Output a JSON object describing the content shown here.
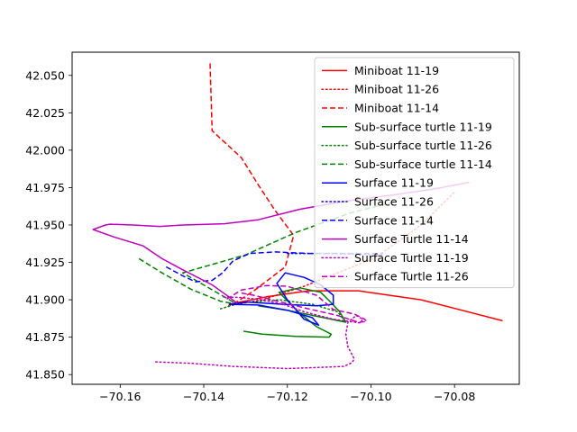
{
  "chart_data": {
    "type": "line",
    "title": "",
    "xlabel": "",
    "ylabel": "",
    "xlim": [
      -70.1715,
      -70.0645
    ],
    "ylim": [
      41.8435,
      42.0655
    ],
    "x_ticks": [
      -70.16,
      -70.14,
      -70.12,
      -70.1,
      -70.08
    ],
    "x_tick_labels": [
      "−70.16",
      "−70.14",
      "−70.12",
      "−70.10",
      "−70.08"
    ],
    "y_ticks": [
      41.85,
      41.875,
      41.9,
      41.925,
      41.95,
      41.975,
      42.0,
      42.025,
      42.05
    ],
    "y_tick_labels": [
      "41.850",
      "41.875",
      "41.900",
      "41.925",
      "41.950",
      "41.975",
      "42.000",
      "42.025",
      "42.050"
    ],
    "legend_position": "top-right",
    "series": [
      {
        "name": "Miniboat 11-19",
        "color": "#ff0000",
        "style": "solid",
        "points": [
          [
            -70.134,
            41.897
          ],
          [
            -70.125,
            41.902
          ],
          [
            -70.115,
            41.906
          ],
          [
            -70.103,
            41.906
          ],
          [
            -70.088,
            41.9
          ],
          [
            -70.0685,
            41.886
          ]
        ]
      },
      {
        "name": "Miniboat 11-26",
        "color": "#ff0000",
        "style": "dotted",
        "points": [
          [
            -70.134,
            41.896
          ],
          [
            -70.126,
            41.9
          ],
          [
            -70.116,
            41.909
          ],
          [
            -70.108,
            41.918
          ],
          [
            -70.099,
            41.928
          ],
          [
            -70.088,
            41.95
          ],
          [
            -70.08,
            41.972
          ]
        ]
      },
      {
        "name": "Miniboat 11-14",
        "color": "#ff0000",
        "style": "dashed",
        "points": [
          [
            -70.1385,
            42.058
          ],
          [
            -70.138,
            42.013
          ],
          [
            -70.131,
            41.995
          ],
          [
            -70.127,
            41.977
          ],
          [
            -70.123,
            41.96
          ],
          [
            -70.1185,
            41.943
          ],
          [
            -70.1205,
            41.922
          ],
          [
            -70.128,
            41.906
          ],
          [
            -70.133,
            41.897
          ]
        ]
      },
      {
        "name": "Sub-surface turtle 11-19",
        "color": "#008000",
        "style": "solid",
        "points": [
          [
            -70.1305,
            41.879
          ],
          [
            -70.126,
            41.877
          ],
          [
            -70.118,
            41.8755
          ],
          [
            -70.11,
            41.875
          ],
          [
            -70.1095,
            41.877
          ],
          [
            -70.113,
            41.882
          ],
          [
            -70.117,
            41.891
          ],
          [
            -70.122,
            41.905
          ],
          [
            -70.117,
            41.908
          ],
          [
            -70.112,
            41.905
          ],
          [
            -70.1095,
            41.898
          ],
          [
            -70.1075,
            41.892
          ],
          [
            -70.106,
            41.885
          ],
          [
            -70.113,
            41.889
          ],
          [
            -70.12,
            41.893
          ],
          [
            -70.127,
            41.896
          ]
        ]
      },
      {
        "name": "Sub-surface turtle 11-26",
        "color": "#008000",
        "style": "dotted",
        "points": [
          [
            -70.136,
            41.894
          ],
          [
            -70.131,
            41.898
          ],
          [
            -70.122,
            41.9
          ],
          [
            -70.114,
            41.897
          ],
          [
            -70.108,
            41.892
          ],
          [
            -70.106,
            41.885
          ]
        ]
      },
      {
        "name": "Sub-surface turtle 11-14",
        "color": "#008000",
        "style": "dashed",
        "points": [
          [
            -70.1555,
            41.9275
          ],
          [
            -70.15,
            41.918
          ],
          [
            -70.143,
            41.907
          ],
          [
            -70.136,
            41.899
          ],
          [
            -70.132,
            41.897
          ],
          [
            -70.145,
            41.918
          ],
          [
            -70.14,
            41.922
          ],
          [
            -70.13,
            41.93
          ],
          [
            -70.118,
            41.945
          ],
          [
            -70.105,
            41.958
          ],
          [
            -70.095,
            41.965
          ]
        ]
      },
      {
        "name": "Surface 11-19",
        "color": "#0000ff",
        "style": "solid",
        "points": [
          [
            -70.134,
            41.897
          ],
          [
            -70.127,
            41.8965
          ],
          [
            -70.12,
            41.893
          ],
          [
            -70.114,
            41.888
          ],
          [
            -70.1125,
            41.883
          ],
          [
            -70.116,
            41.887
          ],
          [
            -70.12,
            41.9
          ],
          [
            -70.1225,
            41.911
          ],
          [
            -70.1205,
            41.918
          ],
          [
            -70.116,
            41.915
          ],
          [
            -70.112,
            41.91
          ],
          [
            -70.109,
            41.903
          ],
          [
            -70.109,
            41.897
          ],
          [
            -70.113,
            41.896
          ],
          [
            -70.121,
            41.897
          ],
          [
            -70.1295,
            41.8985
          ],
          [
            -70.134,
            41.897
          ]
        ]
      },
      {
        "name": "Surface 11-26",
        "color": "#0000ff",
        "style": "dotted",
        "points": [
          [
            -70.12,
            41.931
          ],
          [
            -70.112,
            41.931
          ],
          [
            -70.104,
            41.9305
          ],
          [
            -70.097,
            41.93
          ]
        ]
      },
      {
        "name": "Surface 11-14",
        "color": "#0000ff",
        "style": "dashed",
        "points": [
          [
            -70.149,
            41.922
          ],
          [
            -70.145,
            41.916
          ],
          [
            -70.142,
            41.912
          ],
          [
            -70.138,
            41.913
          ],
          [
            -70.1355,
            41.918
          ],
          [
            -70.133,
            41.926
          ],
          [
            -70.129,
            41.931
          ],
          [
            -70.123,
            41.932
          ],
          [
            -70.115,
            41.931
          ],
          [
            -70.105,
            41.931
          ],
          [
            -70.097,
            41.931
          ]
        ]
      },
      {
        "name": "Surface Turtle 11-14",
        "color": "#bf00bf",
        "style": "solid",
        "points": [
          [
            -70.0765,
            41.9785
          ],
          [
            -70.085,
            41.974
          ],
          [
            -70.095,
            41.97
          ],
          [
            -70.106,
            41.966
          ],
          [
            -70.117,
            41.9605
          ],
          [
            -70.127,
            41.9535
          ],
          [
            -70.135,
            41.9508
          ],
          [
            -70.145,
            41.95
          ],
          [
            -70.1505,
            41.949
          ],
          [
            -70.157,
            41.95
          ],
          [
            -70.1625,
            41.9505
          ],
          [
            -70.1635,
            41.95
          ],
          [
            -70.1665,
            41.947
          ],
          [
            -70.1615,
            41.942
          ],
          [
            -70.1545,
            41.936
          ],
          [
            -70.15,
            41.9275
          ],
          [
            -70.145,
            41.92
          ],
          [
            -70.138,
            41.91
          ],
          [
            -70.1335,
            41.901
          ],
          [
            -70.132,
            41.8975
          ]
        ]
      },
      {
        "name": "Surface Turtle 11-19",
        "color": "#bf00bf",
        "style": "dotted",
        "points": [
          [
            -70.1515,
            41.8585
          ],
          [
            -70.143,
            41.8575
          ],
          [
            -70.133,
            41.8555
          ],
          [
            -70.12,
            41.854
          ],
          [
            -70.1105,
            41.855
          ],
          [
            -70.1065,
            41.8555
          ],
          [
            -70.1045,
            41.858
          ],
          [
            -70.104,
            41.8605
          ],
          [
            -70.1055,
            41.8685
          ],
          [
            -70.106,
            41.877
          ],
          [
            -70.1055,
            41.885
          ],
          [
            -70.1035,
            41.8895
          ],
          [
            -70.102,
            41.887
          ],
          [
            -70.1025,
            41.8845
          ],
          [
            -70.109,
            41.887
          ],
          [
            -70.116,
            41.892
          ],
          [
            -70.121,
            41.897
          ],
          [
            -70.126,
            41.9
          ],
          [
            -70.131,
            41.9015
          ],
          [
            -70.1355,
            41.902
          ]
        ]
      },
      {
        "name": "Surface Turtle 11-26",
        "color": "#bf00bf",
        "style": "dashed",
        "points": [
          [
            -70.1345,
            41.9005
          ],
          [
            -70.131,
            41.9065
          ],
          [
            -70.125,
            41.9095
          ],
          [
            -70.12,
            41.909
          ],
          [
            -70.113,
            41.903
          ],
          [
            -70.109,
            41.8935
          ],
          [
            -70.104,
            41.8905
          ],
          [
            -70.1015,
            41.887
          ],
          [
            -70.101,
            41.8855
          ],
          [
            -70.103,
            41.885
          ],
          [
            -70.108,
            41.8895
          ],
          [
            -70.115,
            41.894
          ],
          [
            -70.123,
            41.8995
          ],
          [
            -70.128,
            41.903
          ],
          [
            -70.131,
            41.9045
          ]
        ]
      }
    ]
  }
}
